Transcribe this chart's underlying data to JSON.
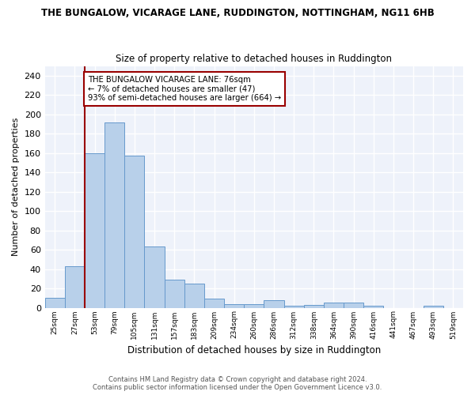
{
  "title_line1": "THE BUNGALOW, VICARAGE LANE, RUDDINGTON, NOTTINGHAM, NG11 6HB",
  "title_line2": "Size of property relative to detached houses in Ruddington",
  "xlabel": "Distribution of detached houses by size in Ruddington",
  "ylabel": "Number of detached properties",
  "bar_color": "#b8d0ea",
  "bar_edge_color": "#6699cc",
  "background_color": "#eef2fa",
  "grid_color": "#ffffff",
  "categories": [
    "25sqm",
    "27sqm",
    "53sqm",
    "79sqm",
    "105sqm",
    "131sqm",
    "157sqm",
    "183sqm",
    "209sqm",
    "234sqm",
    "260sqm",
    "286sqm",
    "312sqm",
    "338sqm",
    "364sqm",
    "390sqm",
    "416sqm",
    "441sqm",
    "467sqm",
    "493sqm",
    "519sqm"
  ],
  "values": [
    10,
    43,
    160,
    192,
    157,
    63,
    29,
    25,
    9,
    4,
    4,
    8,
    2,
    3,
    5,
    5,
    2,
    0,
    0,
    2,
    0
  ],
  "ylim": [
    0,
    250
  ],
  "yticks": [
    0,
    20,
    40,
    60,
    80,
    100,
    120,
    140,
    160,
    180,
    200,
    220,
    240
  ],
  "vline_color": "#990000",
  "vline_x_index": 2.0,
  "annotation_text": "THE BUNGALOW VICARAGE LANE: 76sqm\n← 7% of detached houses are smaller (47)\n93% of semi-detached houses are larger (664) →",
  "annotation_box_color": "#ffffff",
  "annotation_box_edge": "#990000",
  "footer_line1": "Contains HM Land Registry data © Crown copyright and database right 2024.",
  "footer_line2": "Contains public sector information licensed under the Open Government Licence v3.0."
}
